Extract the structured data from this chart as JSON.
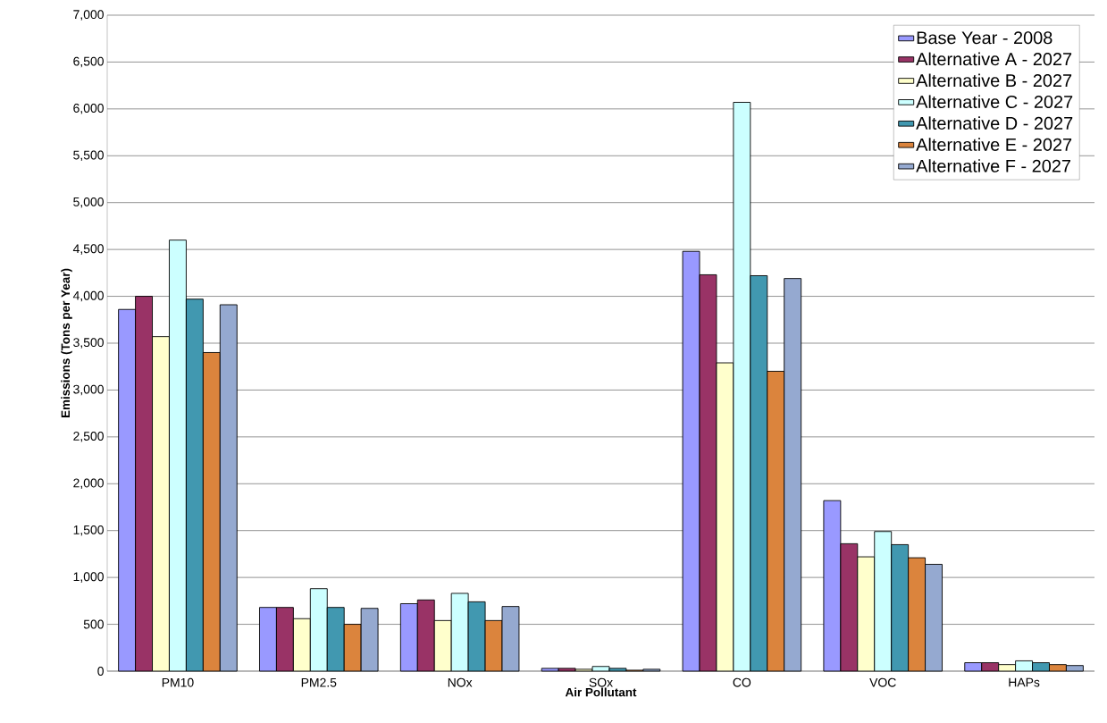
{
  "chart_data": {
    "type": "bar",
    "xlabel": "Air Pollutant",
    "ylabel": "Emissions (Tons per Year)",
    "categories": [
      "PM10",
      "PM2.5",
      "NOx",
      "SOx",
      "CO",
      "VOC",
      "HAPs"
    ],
    "series": [
      {
        "name": "Base Year - 2008",
        "color": "#9999ff",
        "values": [
          3860,
          680,
          720,
          30,
          4480,
          1820,
          90
        ]
      },
      {
        "name": "Alternative A - 2027",
        "color": "#993366",
        "values": [
          4000,
          680,
          760,
          30,
          4230,
          1360,
          90
        ]
      },
      {
        "name": "Alternative B - 2027",
        "color": "#ffffcc",
        "values": [
          3570,
          560,
          540,
          20,
          3290,
          1220,
          70
        ]
      },
      {
        "name": "Alternative C - 2027",
        "color": "#ccffff",
        "values": [
          4600,
          880,
          830,
          50,
          6070,
          1490,
          110
        ]
      },
      {
        "name": "Alternative D - 2027",
        "color": "#4198b0",
        "values": [
          3970,
          680,
          740,
          30,
          4220,
          1350,
          90
        ]
      },
      {
        "name": "Alternative E - 2027",
        "color": "#db843d",
        "values": [
          3400,
          500,
          540,
          10,
          3200,
          1210,
          70
        ]
      },
      {
        "name": "Alternative F - 2027",
        "color": "#95a9d0",
        "values": [
          3910,
          670,
          690,
          20,
          4190,
          1140,
          60
        ]
      }
    ],
    "ylim": [
      0,
      7000
    ],
    "yticks": [
      {
        "value": 0,
        "label": "0"
      },
      {
        "value": 500,
        "label": "500"
      },
      {
        "value": 1000,
        "label": "1,000"
      },
      {
        "value": 1500,
        "label": "1,500"
      },
      {
        "value": 2000,
        "label": "2,000"
      },
      {
        "value": 2500,
        "label": "2,500"
      },
      {
        "value": 3000,
        "label": "3,000"
      },
      {
        "value": 3500,
        "label": "3,500"
      },
      {
        "value": 4000,
        "label": "4,000"
      },
      {
        "value": 4500,
        "label": "4,500"
      },
      {
        "value": 5000,
        "label": "5,000"
      },
      {
        "value": 5500,
        "label": "5,500"
      },
      {
        "value": 6000,
        "label": "6,000"
      },
      {
        "value": 6500,
        "label": "6,500"
      },
      {
        "value": 7000,
        "label": "7,000"
      }
    ],
    "grid": "y",
    "legend": "top right"
  }
}
